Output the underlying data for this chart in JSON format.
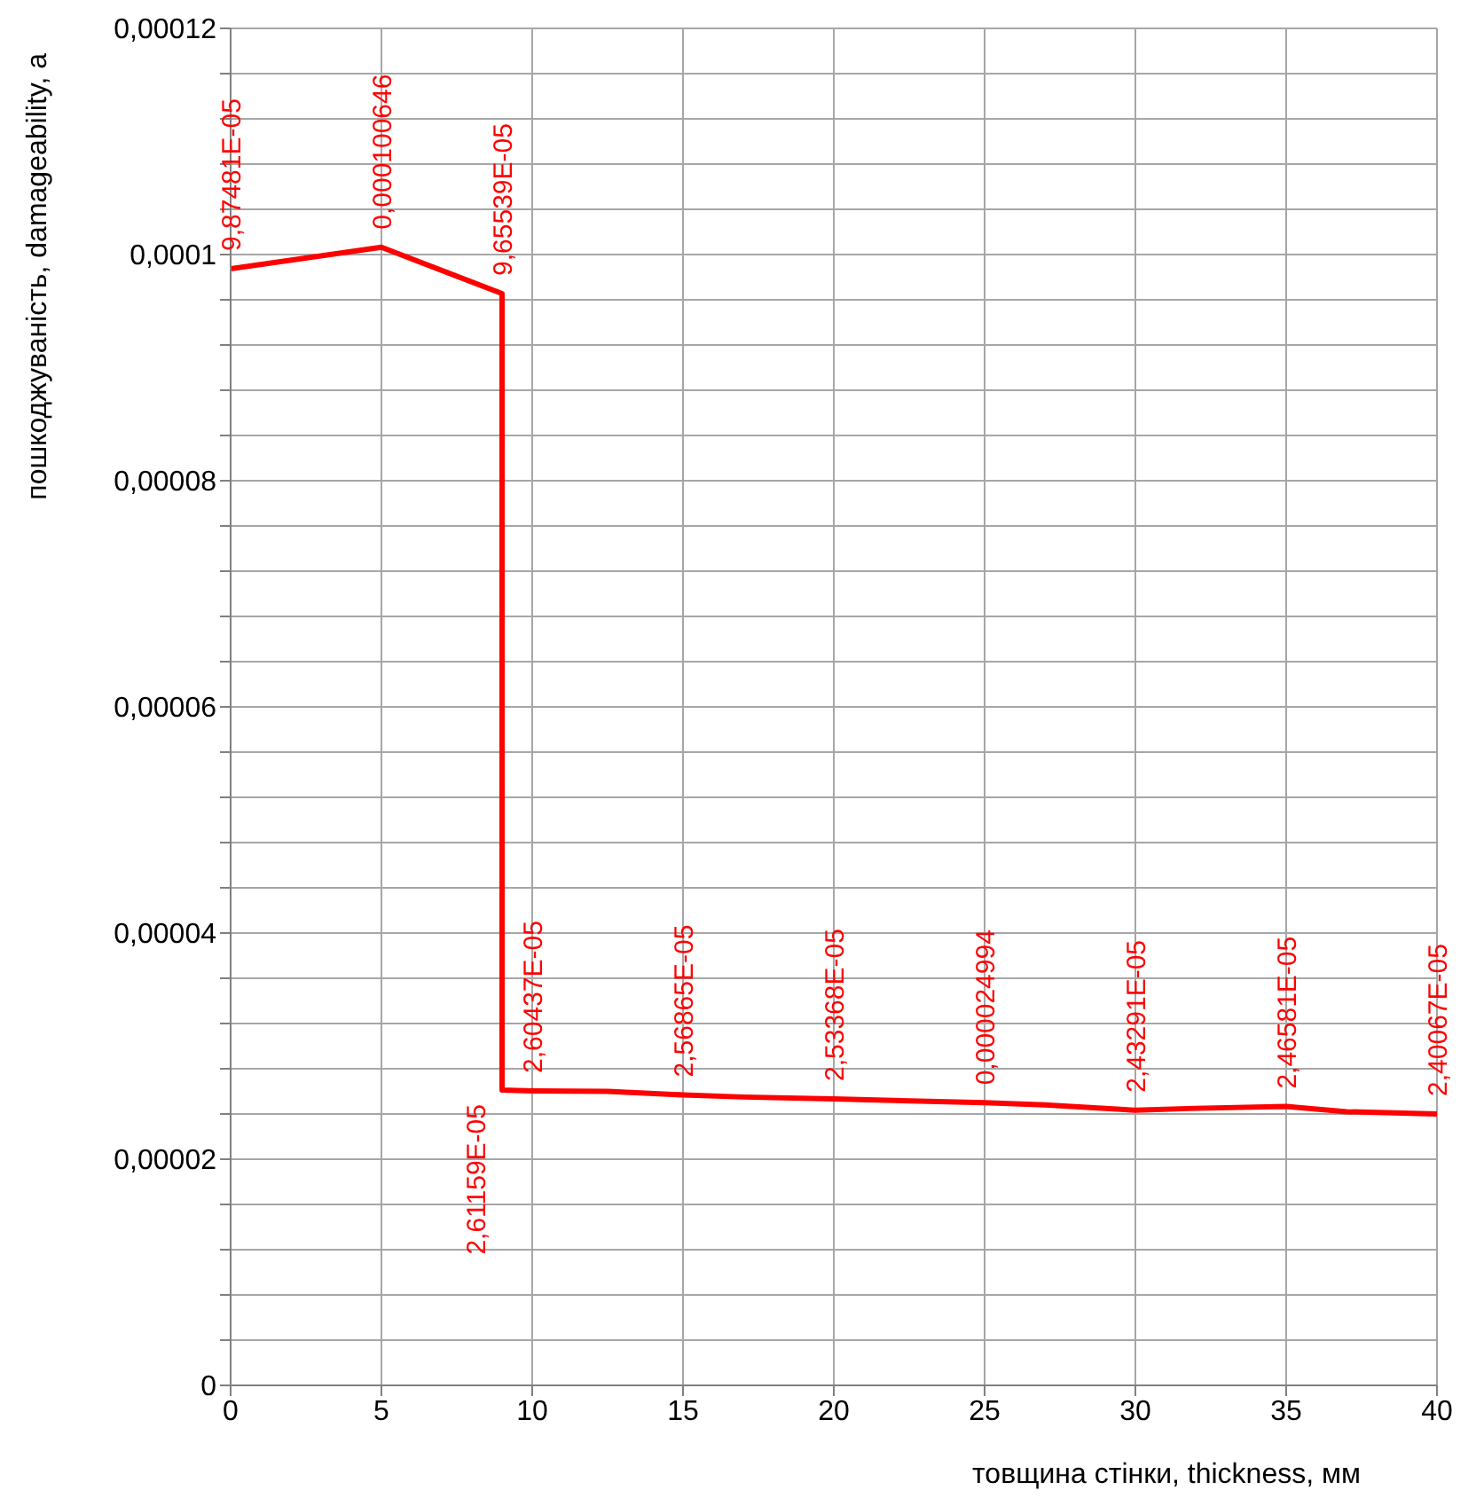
{
  "chart_data": {
    "type": "line",
    "xlabel": "товщина стінки, thickness, мм",
    "ylabel": "пошкоджуваність, damageability, a",
    "x": [
      0,
      5,
      9,
      9,
      10,
      12.5,
      15,
      17,
      20,
      22,
      25,
      27,
      30,
      32,
      35,
      37,
      40
    ],
    "series": [
      {
        "color": "#ff0000",
        "values": [
          9.87481e-05,
          0.000100646,
          9.65539e-05,
          2.61159e-05,
          2.60437e-05,
          2.6e-05,
          2.56865e-05,
          2.55e-05,
          2.53368e-05,
          2.52e-05,
          2.4994e-05,
          2.48e-05,
          2.43291e-05,
          2.45e-05,
          2.46581e-05,
          2.42e-05,
          2.40067e-05
        ],
        "value_labels": [
          "9,87481E-05",
          "0,000100646",
          "9,65539E-05",
          "2,61159E-05",
          "2,60437E-05",
          null,
          "2,56865E-05",
          null,
          "2,53368E-05",
          null,
          "0,000024994",
          null,
          "2,43291E-05",
          null,
          "2,46581E-05",
          null,
          "2,40067E-05"
        ]
      }
    ],
    "xlim": [
      0,
      40
    ],
    "xticks": [
      0,
      5,
      10,
      15,
      20,
      25,
      30,
      35,
      40
    ],
    "ylim": [
      0,
      0.00012
    ],
    "yticks": [
      {
        "value": 0,
        "label": "0"
      },
      {
        "value": 4e-06,
        "label": null
      },
      {
        "value": 8e-06,
        "label": null
      },
      {
        "value": 1.2e-05,
        "label": null
      },
      {
        "value": 1.6e-05,
        "label": null
      },
      {
        "value": 2e-05,
        "label": "0,00002"
      },
      {
        "value": 2.4e-05,
        "label": null
      },
      {
        "value": 2.8e-05,
        "label": null
      },
      {
        "value": 3.2e-05,
        "label": null
      },
      {
        "value": 3.6e-05,
        "label": null
      },
      {
        "value": 4e-05,
        "label": "0,00004"
      },
      {
        "value": 4.4e-05,
        "label": null
      },
      {
        "value": 4.8e-05,
        "label": null
      },
      {
        "value": 5.2e-05,
        "label": null
      },
      {
        "value": 5.6e-05,
        "label": null
      },
      {
        "value": 6e-05,
        "label": "0,00006"
      },
      {
        "value": 6.4e-05,
        "label": null
      },
      {
        "value": 6.8e-05,
        "label": null
      },
      {
        "value": 7.2e-05,
        "label": null
      },
      {
        "value": 7.6e-05,
        "label": null
      },
      {
        "value": 8e-05,
        "label": "0,00008"
      },
      {
        "value": 8.4e-05,
        "label": null
      },
      {
        "value": 8.8e-05,
        "label": null
      },
      {
        "value": 9.2e-05,
        "label": null
      },
      {
        "value": 9.6e-05,
        "label": null
      },
      {
        "value": 0.0001,
        "label": "0,0001"
      },
      {
        "value": 0.000104,
        "label": null
      },
      {
        "value": 0.000108,
        "label": null
      },
      {
        "value": 0.000112,
        "label": null
      },
      {
        "value": 0.000116,
        "label": null
      },
      {
        "value": 0.00012,
        "label": "0,00012"
      }
    ],
    "grid": true,
    "marker": "none",
    "line_style": "solid"
  }
}
